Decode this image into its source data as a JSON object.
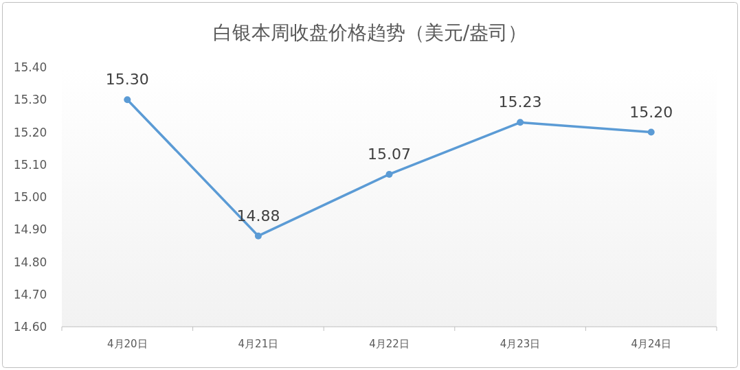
{
  "chart_data": {
    "type": "line",
    "title": "白银本周收盘价格趋势（美元/盎司）",
    "categories": [
      "4月20日",
      "4月21日",
      "4月22日",
      "4月23日",
      "4月24日"
    ],
    "values": [
      15.3,
      14.88,
      15.07,
      15.23,
      15.2
    ],
    "value_labels": [
      "15.30",
      "14.88",
      "15.07",
      "15.23",
      "15.20"
    ],
    "color": "#5b9bd5",
    "marker": "circle",
    "grid": false,
    "ylim": [
      14.6,
      15.4
    ],
    "yticks": [
      {
        "value": 14.6,
        "label": "14.60"
      },
      {
        "value": 14.7,
        "label": "14.70"
      },
      {
        "value": 14.8,
        "label": "14.80"
      },
      {
        "value": 14.9,
        "label": "14.90"
      },
      {
        "value": 15.0,
        "label": "15.00"
      },
      {
        "value": 15.1,
        "label": "15.10"
      },
      {
        "value": 15.2,
        "label": "15.20"
      },
      {
        "value": 15.3,
        "label": "15.30"
      },
      {
        "value": 15.4,
        "label": "15.40"
      }
    ]
  }
}
